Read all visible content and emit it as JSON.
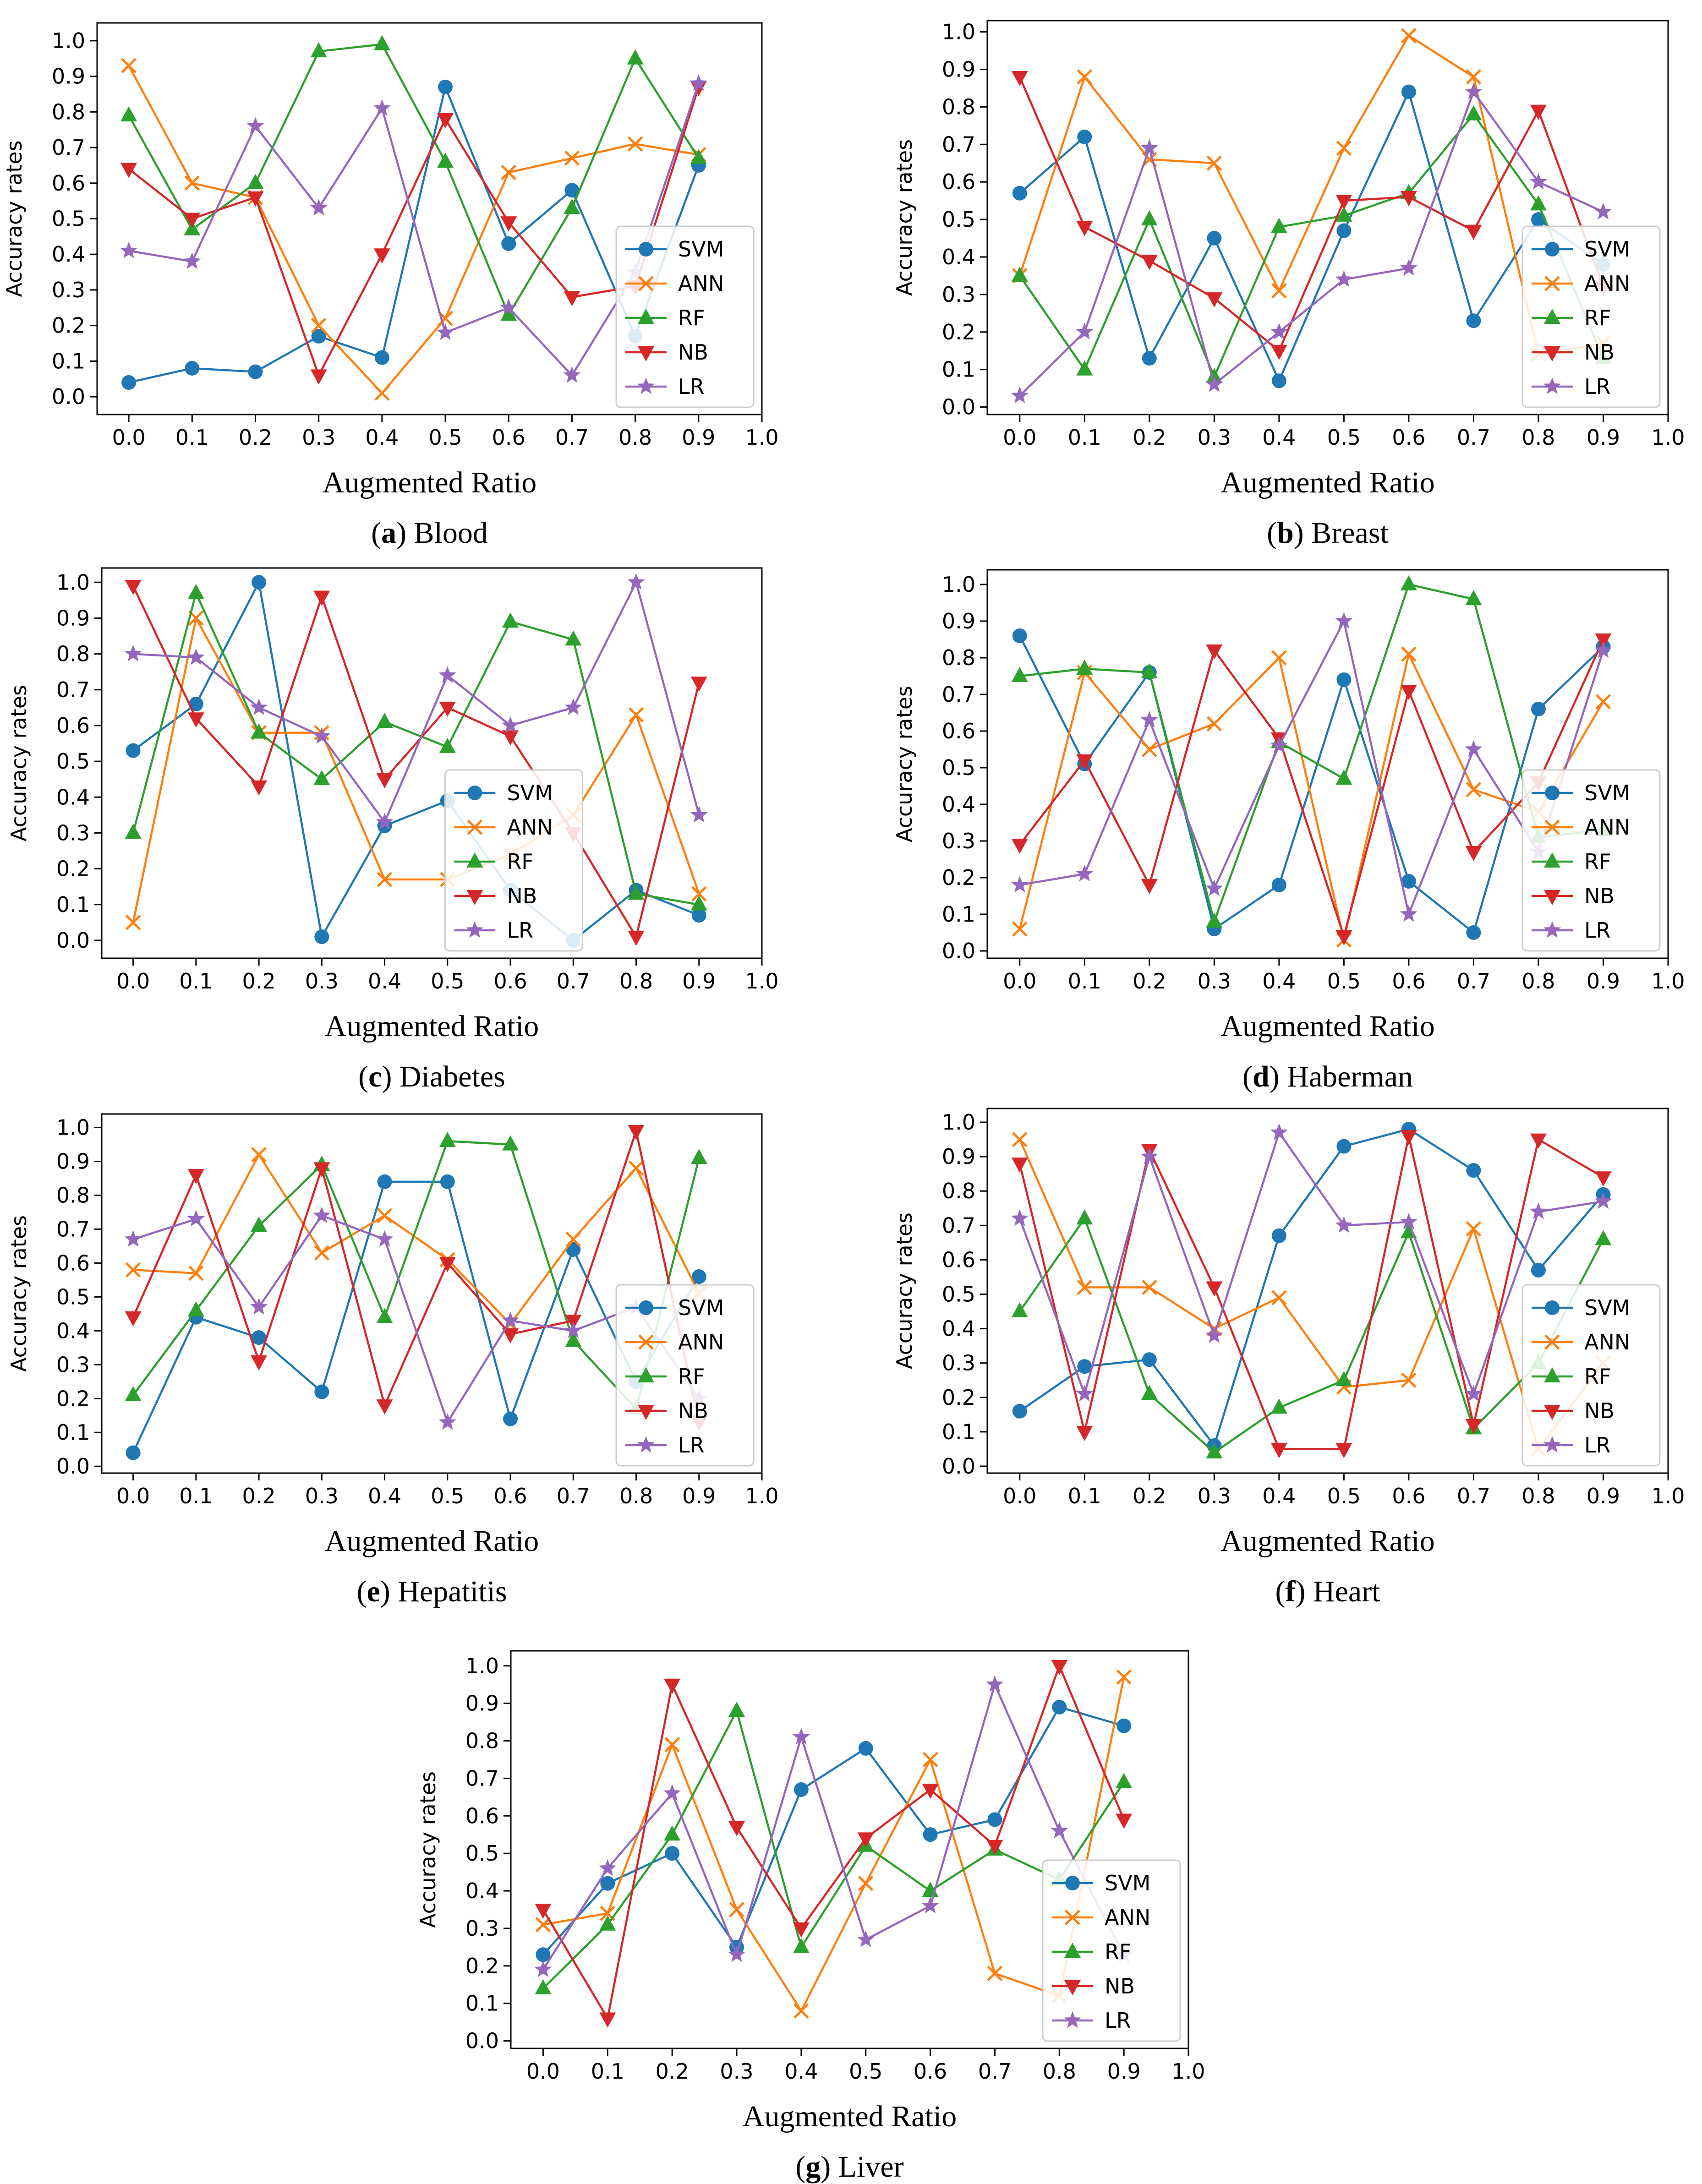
{
  "figure": {
    "panels": [
      "a",
      "b",
      "c",
      "d",
      "e",
      "f",
      "g"
    ]
  },
  "colors": {
    "SVM": "#1f77b4",
    "ANN": "#ff7f0e",
    "RF": "#2ca02c",
    "NB": "#d62728",
    "LR": "#9467bd",
    "axis": "#000000",
    "legend_border": "#cccccc"
  },
  "chart_data": [
    {
      "type": "line",
      "caption_letter": "a",
      "caption_name": "Blood",
      "xlabel": "Augmented Ratio",
      "ylabel": "Accuracy rates",
      "x": [
        0.0,
        0.1,
        0.2,
        0.3,
        0.4,
        0.5,
        0.6,
        0.7,
        0.8,
        0.9
      ],
      "xlim": [
        -0.05,
        1.0
      ],
      "ylim": [
        -0.05,
        1.05
      ],
      "xticks": [
        "0.0",
        "0.1",
        "0.2",
        "0.3",
        "0.4",
        "0.5",
        "0.6",
        "0.7",
        "0.8",
        "0.9",
        "1.0"
      ],
      "yticks": [
        "0.0",
        "0.1",
        "0.2",
        "0.3",
        "0.4",
        "0.5",
        "0.6",
        "0.7",
        "0.8",
        "0.9",
        "1.0"
      ],
      "legend_position": "right",
      "series": [
        {
          "name": "SVM",
          "values": [
            0.04,
            0.08,
            0.07,
            0.17,
            0.11,
            0.87,
            0.43,
            0.58,
            0.17,
            0.65
          ]
        },
        {
          "name": "ANN",
          "values": [
            0.93,
            0.6,
            0.56,
            0.2,
            0.01,
            0.22,
            0.63,
            0.67,
            0.71,
            0.68
          ]
        },
        {
          "name": "RF",
          "values": [
            0.79,
            0.47,
            0.6,
            0.97,
            0.99,
            0.66,
            0.23,
            0.53,
            0.95,
            0.67
          ]
        },
        {
          "name": "NB",
          "values": [
            0.64,
            0.5,
            0.56,
            0.06,
            0.4,
            0.78,
            0.49,
            0.28,
            0.31,
            0.87
          ]
        },
        {
          "name": "LR",
          "values": [
            0.41,
            0.38,
            0.76,
            0.53,
            0.81,
            0.18,
            0.25,
            0.06,
            0.35,
            0.88
          ]
        }
      ]
    },
    {
      "type": "line",
      "caption_letter": "b",
      "caption_name": "Breast",
      "xlabel": "Augmented Ratio",
      "ylabel": "Accuracy rates",
      "x": [
        0.0,
        0.1,
        0.2,
        0.3,
        0.4,
        0.5,
        0.6,
        0.7,
        0.8,
        0.9
      ],
      "xlim": [
        -0.05,
        1.0
      ],
      "ylim": [
        -0.02,
        1.03
      ],
      "xticks": [
        "0.0",
        "0.1",
        "0.2",
        "0.3",
        "0.4",
        "0.5",
        "0.6",
        "0.7",
        "0.8",
        "0.9",
        "1.0"
      ],
      "yticks": [
        "0.0",
        "0.1",
        "0.2",
        "0.3",
        "0.4",
        "0.5",
        "0.6",
        "0.7",
        "0.8",
        "0.9",
        "1.0"
      ],
      "legend_position": "right",
      "series": [
        {
          "name": "SVM",
          "values": [
            0.57,
            0.72,
            0.13,
            0.45,
            0.07,
            0.47,
            0.84,
            0.23,
            0.5,
            0.38
          ]
        },
        {
          "name": "ANN",
          "values": [
            0.35,
            0.88,
            0.66,
            0.65,
            0.31,
            0.69,
            0.99,
            0.88,
            0.14,
            0.17
          ]
        },
        {
          "name": "RF",
          "values": [
            0.35,
            0.1,
            0.5,
            0.08,
            0.48,
            0.51,
            0.57,
            0.78,
            0.54,
            0.13
          ]
        },
        {
          "name": "NB",
          "values": [
            0.88,
            0.48,
            0.39,
            0.29,
            0.15,
            0.55,
            0.56,
            0.47,
            0.79,
            0.32
          ]
        },
        {
          "name": "LR",
          "values": [
            0.03,
            0.2,
            0.69,
            0.06,
            0.2,
            0.34,
            0.37,
            0.84,
            0.6,
            0.52
          ]
        }
      ]
    },
    {
      "type": "line",
      "caption_letter": "c",
      "caption_name": "Diabetes",
      "xlabel": "Augmented Ratio",
      "ylabel": "Accuracy rates",
      "x": [
        0.0,
        0.1,
        0.2,
        0.3,
        0.4,
        0.5,
        0.6,
        0.7,
        0.8,
        0.9
      ],
      "xlim": [
        -0.05,
        1.0
      ],
      "ylim": [
        -0.05,
        1.04
      ],
      "xticks": [
        "0.0",
        "0.1",
        "0.2",
        "0.3",
        "0.4",
        "0.5",
        "0.6",
        "0.7",
        "0.8",
        "0.9",
        "1.0"
      ],
      "yticks": [
        "0.0",
        "0.1",
        "0.2",
        "0.3",
        "0.4",
        "0.5",
        "0.6",
        "0.7",
        "0.8",
        "0.9",
        "1.0"
      ],
      "legend_position": "center",
      "series": [
        {
          "name": "SVM",
          "values": [
            0.53,
            0.66,
            1.0,
            0.01,
            0.32,
            0.39,
            0.14,
            0.0,
            0.14,
            0.07
          ]
        },
        {
          "name": "ANN",
          "values": [
            0.05,
            0.9,
            0.58,
            0.58,
            0.17,
            0.17,
            0.24,
            0.35,
            0.63,
            0.13
          ]
        },
        {
          "name": "RF",
          "values": [
            0.3,
            0.97,
            0.58,
            0.45,
            0.61,
            0.54,
            0.89,
            0.84,
            0.13,
            0.1
          ]
        },
        {
          "name": "NB",
          "values": [
            0.99,
            0.62,
            0.43,
            0.96,
            0.45,
            0.65,
            0.57,
            0.3,
            0.01,
            0.72
          ]
        },
        {
          "name": "LR",
          "values": [
            0.8,
            0.79,
            0.65,
            0.57,
            0.33,
            0.74,
            0.6,
            0.65,
            1.0,
            0.35
          ]
        }
      ]
    },
    {
      "type": "line",
      "caption_letter": "d",
      "caption_name": "Haberman",
      "xlabel": "Augmented Ratio",
      "ylabel": "Accuracy rates",
      "x": [
        0.0,
        0.1,
        0.2,
        0.3,
        0.4,
        0.5,
        0.6,
        0.7,
        0.8,
        0.9
      ],
      "xlim": [
        -0.05,
        1.0
      ],
      "ylim": [
        -0.02,
        1.04
      ],
      "xticks": [
        "0.0",
        "0.1",
        "0.2",
        "0.3",
        "0.4",
        "0.5",
        "0.6",
        "0.7",
        "0.8",
        "0.9",
        "1.0"
      ],
      "yticks": [
        "0.0",
        "0.1",
        "0.2",
        "0.3",
        "0.4",
        "0.5",
        "0.6",
        "0.7",
        "0.8",
        "0.9",
        "1.0"
      ],
      "legend_position": "right",
      "series": [
        {
          "name": "SVM",
          "values": [
            0.86,
            0.51,
            0.76,
            0.06,
            0.18,
            0.74,
            0.19,
            0.05,
            0.66,
            0.83
          ]
        },
        {
          "name": "ANN",
          "values": [
            0.06,
            0.76,
            0.55,
            0.62,
            0.8,
            0.03,
            0.81,
            0.44,
            0.38,
            0.68
          ]
        },
        {
          "name": "RF",
          "values": [
            0.75,
            0.77,
            0.76,
            0.08,
            0.57,
            0.47,
            1.0,
            0.96,
            0.31,
            0.33
          ]
        },
        {
          "name": "NB",
          "values": [
            0.29,
            0.52,
            0.18,
            0.82,
            0.58,
            0.04,
            0.71,
            0.27,
            0.46,
            0.85
          ]
        },
        {
          "name": "LR",
          "values": [
            0.18,
            0.21,
            0.63,
            0.17,
            0.56,
            0.9,
            0.1,
            0.55,
            0.27,
            0.82
          ]
        }
      ]
    },
    {
      "type": "line",
      "caption_letter": "e",
      "caption_name": "Hepatitis",
      "xlabel": "Augmented Ratio",
      "ylabel": "Accuracy rates",
      "x": [
        0.0,
        0.1,
        0.2,
        0.3,
        0.4,
        0.5,
        0.6,
        0.7,
        0.8,
        0.9
      ],
      "xlim": [
        -0.05,
        1.0
      ],
      "ylim": [
        -0.02,
        1.04
      ],
      "xticks": [
        "0.0",
        "0.1",
        "0.2",
        "0.3",
        "0.4",
        "0.5",
        "0.6",
        "0.7",
        "0.8",
        "0.9",
        "1.0"
      ],
      "yticks": [
        "0.0",
        "0.1",
        "0.2",
        "0.3",
        "0.4",
        "0.5",
        "0.6",
        "0.7",
        "0.8",
        "0.9",
        "1.0"
      ],
      "legend_position": "right",
      "series": [
        {
          "name": "SVM",
          "values": [
            0.04,
            0.44,
            0.38,
            0.22,
            0.84,
            0.84,
            0.14,
            0.64,
            0.25,
            0.56
          ]
        },
        {
          "name": "ANN",
          "values": [
            0.58,
            0.57,
            0.92,
            0.63,
            0.74,
            0.61,
            0.42,
            0.67,
            0.88,
            0.51
          ]
        },
        {
          "name": "RF",
          "values": [
            0.21,
            0.46,
            0.71,
            0.89,
            0.44,
            0.96,
            0.95,
            0.37,
            0.17,
            0.91
          ]
        },
        {
          "name": "NB",
          "values": [
            0.44,
            0.86,
            0.31,
            0.88,
            0.18,
            0.6,
            0.39,
            0.43,
            0.99,
            0.13
          ]
        },
        {
          "name": "LR",
          "values": [
            0.67,
            0.73,
            0.47,
            0.74,
            0.67,
            0.13,
            0.43,
            0.4,
            0.47,
            0.2
          ]
        }
      ]
    },
    {
      "type": "line",
      "caption_letter": "f",
      "caption_name": "Heart",
      "xlabel": "Augmented Ratio",
      "ylabel": "Accuracy rates",
      "x": [
        0.0,
        0.1,
        0.2,
        0.3,
        0.4,
        0.5,
        0.6,
        0.7,
        0.8,
        0.9
      ],
      "xlim": [
        -0.05,
        1.0
      ],
      "ylim": [
        -0.02,
        1.04
      ],
      "xticks": [
        "0.0",
        "0.1",
        "0.2",
        "0.3",
        "0.4",
        "0.5",
        "0.6",
        "0.7",
        "0.8",
        "0.9",
        "1.0"
      ],
      "yticks": [
        "0.0",
        "0.1",
        "0.2",
        "0.3",
        "0.4",
        "0.5",
        "0.6",
        "0.7",
        "0.8",
        "0.9",
        "1.0"
      ],
      "legend_position": "right",
      "series": [
        {
          "name": "SVM",
          "values": [
            0.16,
            0.29,
            0.31,
            0.06,
            0.67,
            0.93,
            0.98,
            0.86,
            0.57,
            0.79
          ]
        },
        {
          "name": "ANN",
          "values": [
            0.95,
            0.52,
            0.52,
            0.4,
            0.49,
            0.23,
            0.25,
            0.69,
            0.05,
            0.3
          ]
        },
        {
          "name": "RF",
          "values": [
            0.45,
            0.72,
            0.21,
            0.04,
            0.17,
            0.25,
            0.68,
            0.11,
            0.3,
            0.66
          ]
        },
        {
          "name": "NB",
          "values": [
            0.88,
            0.1,
            0.92,
            0.52,
            0.05,
            0.05,
            0.96,
            0.12,
            0.95,
            0.84
          ]
        },
        {
          "name": "LR",
          "values": [
            0.72,
            0.21,
            0.9,
            0.38,
            0.97,
            0.7,
            0.71,
            0.21,
            0.74,
            0.77
          ]
        }
      ]
    },
    {
      "type": "line",
      "caption_letter": "g",
      "caption_name": "Liver",
      "xlabel": "Augmented Ratio",
      "ylabel": "Accuracy rates",
      "x": [
        0.0,
        0.1,
        0.2,
        0.3,
        0.4,
        0.5,
        0.6,
        0.7,
        0.8,
        0.9
      ],
      "xlim": [
        -0.05,
        1.0
      ],
      "ylim": [
        -0.02,
        1.04
      ],
      "xticks": [
        "0.0",
        "0.1",
        "0.2",
        "0.3",
        "0.4",
        "0.5",
        "0.6",
        "0.7",
        "0.8",
        "0.9",
        "1.0"
      ],
      "yticks": [
        "0.0",
        "0.1",
        "0.2",
        "0.3",
        "0.4",
        "0.5",
        "0.6",
        "0.7",
        "0.8",
        "0.9",
        "1.0"
      ],
      "legend_position": "right",
      "series": [
        {
          "name": "SVM",
          "values": [
            0.23,
            0.42,
            0.5,
            0.25,
            0.67,
            0.78,
            0.55,
            0.59,
            0.89,
            0.84
          ]
        },
        {
          "name": "ANN",
          "values": [
            0.31,
            0.34,
            0.79,
            0.35,
            0.08,
            0.42,
            0.75,
            0.18,
            0.12,
            0.97
          ]
        },
        {
          "name": "RF",
          "values": [
            0.14,
            0.31,
            0.55,
            0.88,
            0.25,
            0.52,
            0.4,
            0.51,
            0.43,
            0.69
          ]
        },
        {
          "name": "NB",
          "values": [
            0.35,
            0.06,
            0.95,
            0.57,
            0.3,
            0.54,
            0.67,
            0.52,
            1.0,
            0.59
          ]
        },
        {
          "name": "LR",
          "values": [
            0.19,
            0.46,
            0.66,
            0.23,
            0.81,
            0.27,
            0.36,
            0.95,
            0.56,
            0.23
          ]
        }
      ]
    }
  ]
}
